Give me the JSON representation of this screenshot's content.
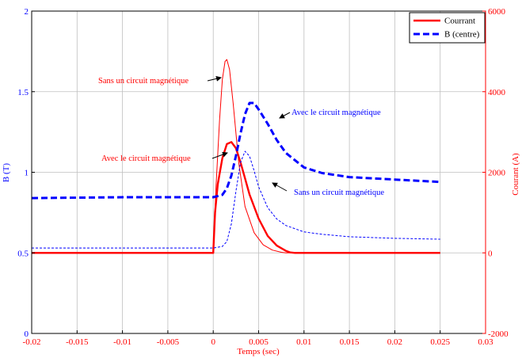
{
  "chart_data": {
    "type": "line",
    "title": "",
    "xlabel": "Temps (sec)",
    "ylabel_left": "B (T)",
    "ylabel_right": "Courant (A)",
    "xlim": [
      -0.02,
      0.03
    ],
    "ylim_left": [
      0,
      2
    ],
    "ylim_right": [
      -2000,
      6000
    ],
    "grid": true,
    "legend_position": "top-right",
    "x_ticks": [
      "-0.02",
      "-0.015",
      "-0.01",
      "-0.005",
      "0",
      "0.005",
      "0.01",
      "0.015",
      "0.02",
      "0.025",
      "0.03"
    ],
    "y_left_ticks": [
      "0",
      "0.5",
      "1",
      "1.5",
      "2"
    ],
    "y_right_ticks": [
      "-2000",
      "0",
      "2000",
      "4000",
      "6000"
    ],
    "legend": [
      {
        "label": "Courrant",
        "color": "#ff0000",
        "style": "solid"
      },
      {
        "label": "B (centre)",
        "color": "#0000ff",
        "style": "dashed"
      }
    ],
    "series": [
      {
        "name": "Courrant",
        "variant": "Avec le circuit magnétique",
        "axis": "right",
        "color": "#ff0000",
        "style": "solid",
        "weight": "thick",
        "x": [
          -0.02,
          0,
          0.0002,
          0.0005,
          0.001,
          0.0015,
          0.002,
          0.0025,
          0.003,
          0.0035,
          0.004,
          0.005,
          0.006,
          0.007,
          0.008,
          0.0085,
          0.009,
          0.01,
          0.015,
          0.02,
          0.025
        ],
        "y": [
          0,
          0,
          1000,
          1700,
          2350,
          2700,
          2750,
          2600,
          2250,
          1850,
          1450,
          850,
          420,
          180,
          50,
          10,
          0,
          0,
          0,
          0,
          0
        ]
      },
      {
        "name": "Courrant",
        "variant": "Sans un circuit magnétique",
        "axis": "right",
        "color": "#ff0000",
        "style": "solid",
        "weight": "thin",
        "x": [
          -0.02,
          0,
          0.0003,
          0.0007,
          0.001,
          0.0013,
          0.0015,
          0.0018,
          0.0022,
          0.0028,
          0.0035,
          0.0045,
          0.0055,
          0.0065,
          0.0075,
          0.008,
          0.0085,
          0.01,
          0.025
        ],
        "y": [
          0,
          0,
          1600,
          3300,
          4300,
          4750,
          4800,
          4550,
          3700,
          2250,
          1150,
          500,
          200,
          70,
          15,
          0,
          0,
          0,
          0
        ]
      },
      {
        "name": "B (centre)",
        "variant": "Avec le circuit magnétique",
        "axis": "left",
        "color": "#0000ff",
        "style": "dashed",
        "weight": "thick",
        "x": [
          -0.02,
          -0.01,
          0,
          0.001,
          0.0015,
          0.002,
          0.0025,
          0.003,
          0.0035,
          0.004,
          0.0045,
          0.005,
          0.006,
          0.007,
          0.008,
          0.01,
          0.012,
          0.015,
          0.02,
          0.025
        ],
        "y": [
          0.84,
          0.845,
          0.845,
          0.86,
          0.9,
          0.98,
          1.1,
          1.24,
          1.36,
          1.43,
          1.43,
          1.39,
          1.3,
          1.2,
          1.12,
          1.03,
          0.995,
          0.97,
          0.955,
          0.94
        ]
      },
      {
        "name": "B (centre)",
        "variant": "Sans un circuit magnétique",
        "axis": "left",
        "color": "#0000ff",
        "style": "dashed",
        "weight": "thin",
        "x": [
          -0.02,
          0,
          0.001,
          0.0015,
          0.002,
          0.0025,
          0.003,
          0.0035,
          0.004,
          0.0045,
          0.005,
          0.006,
          0.007,
          0.008,
          0.01,
          0.012,
          0.015,
          0.02,
          0.025
        ],
        "y": [
          0.53,
          0.53,
          0.54,
          0.57,
          0.68,
          0.88,
          1.06,
          1.13,
          1.1,
          1.01,
          0.91,
          0.78,
          0.71,
          0.67,
          0.63,
          0.615,
          0.6,
          0.59,
          0.585
        ]
      }
    ],
    "annotations": [
      {
        "text": "Sans un circuit magnétique",
        "color": "#ff0000"
      },
      {
        "text": "Avec le circuit magnétique",
        "color": "#ff0000"
      },
      {
        "text": "Avec le circuit magnétique",
        "color": "#0000ff"
      },
      {
        "text": "Sans un circuit magnétique",
        "color": "#0000ff"
      }
    ]
  }
}
